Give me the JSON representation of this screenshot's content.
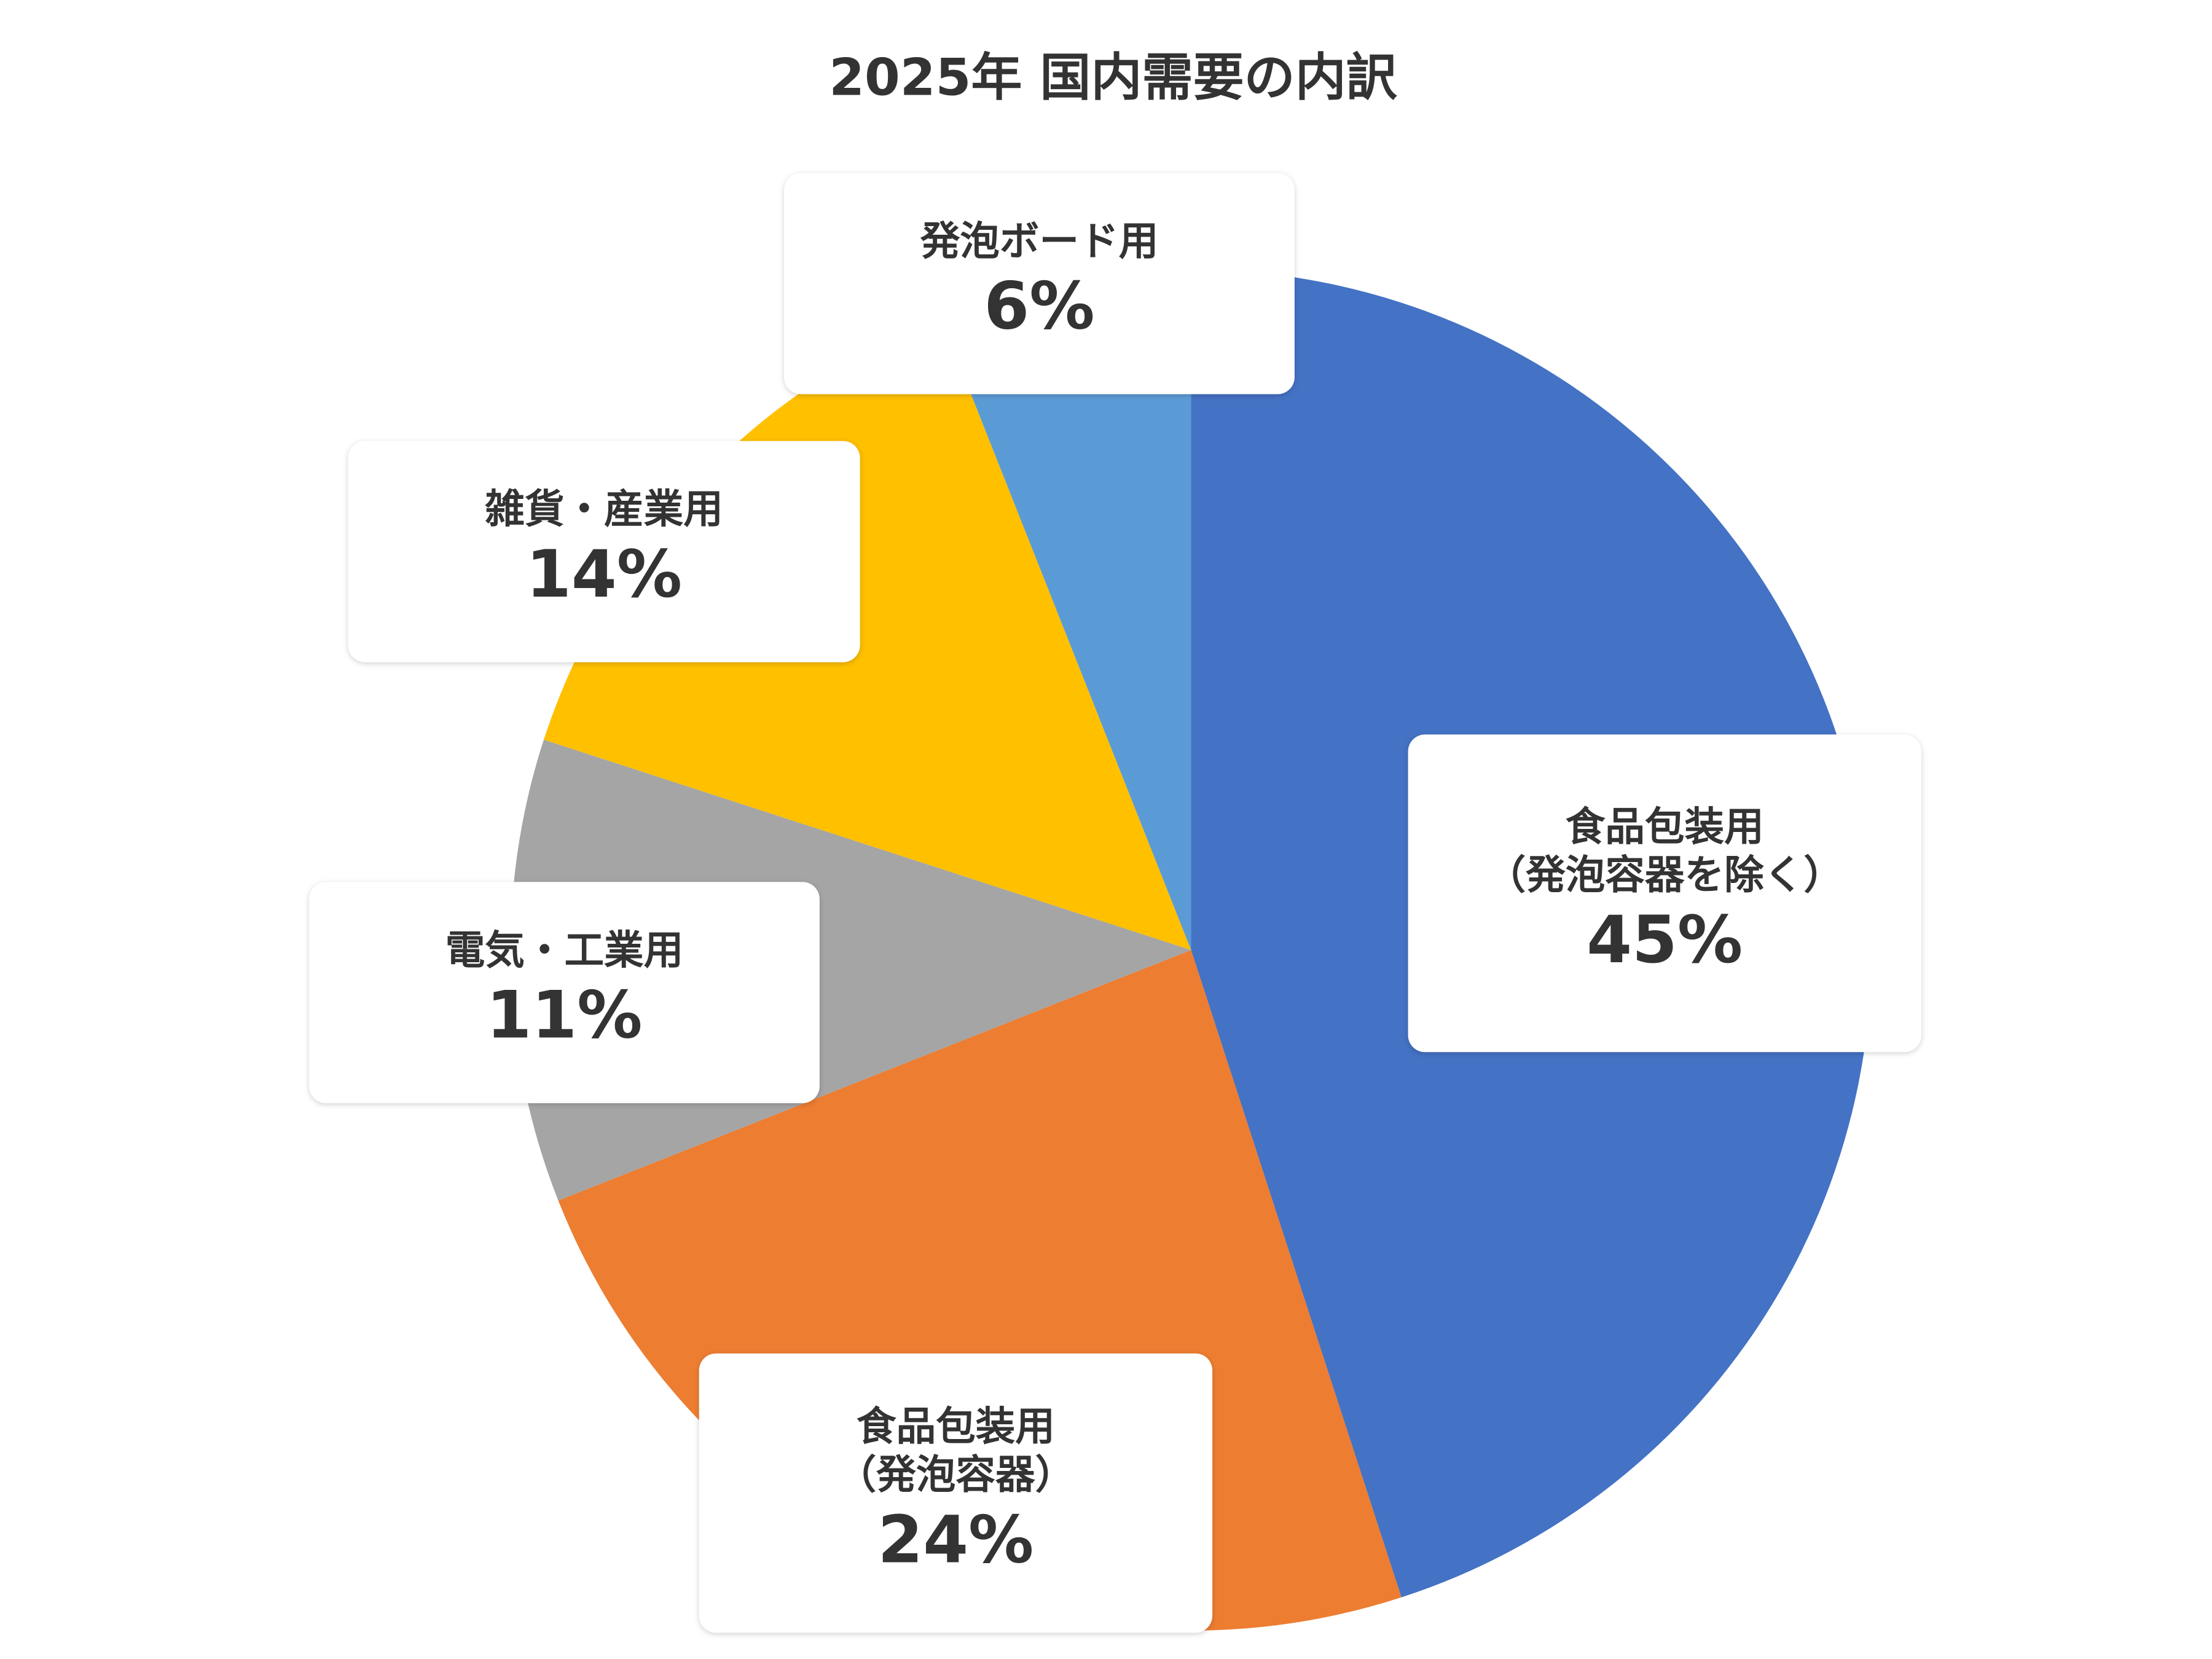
{
  "chart_data": {
    "type": "pie",
    "title": "2025年 国内需要の内訳",
    "categories": [
      [
        "食品包装用",
        "（発泡容器を除く）"
      ],
      [
        "食品包装用",
        "（発泡容器）"
      ],
      [
        "電気・工業用"
      ],
      [
        "雑貨・産業用"
      ],
      [
        "発泡ボード用"
      ]
    ],
    "values": [
      45,
      24,
      11,
      14,
      6
    ],
    "value_labels": [
      "45%",
      "24%",
      "11%",
      "14%",
      "6%"
    ],
    "colors": [
      "#4472c4",
      "#ed7d31",
      "#a5a5a5",
      "#ffc000",
      "#5b9bd5"
    ]
  }
}
